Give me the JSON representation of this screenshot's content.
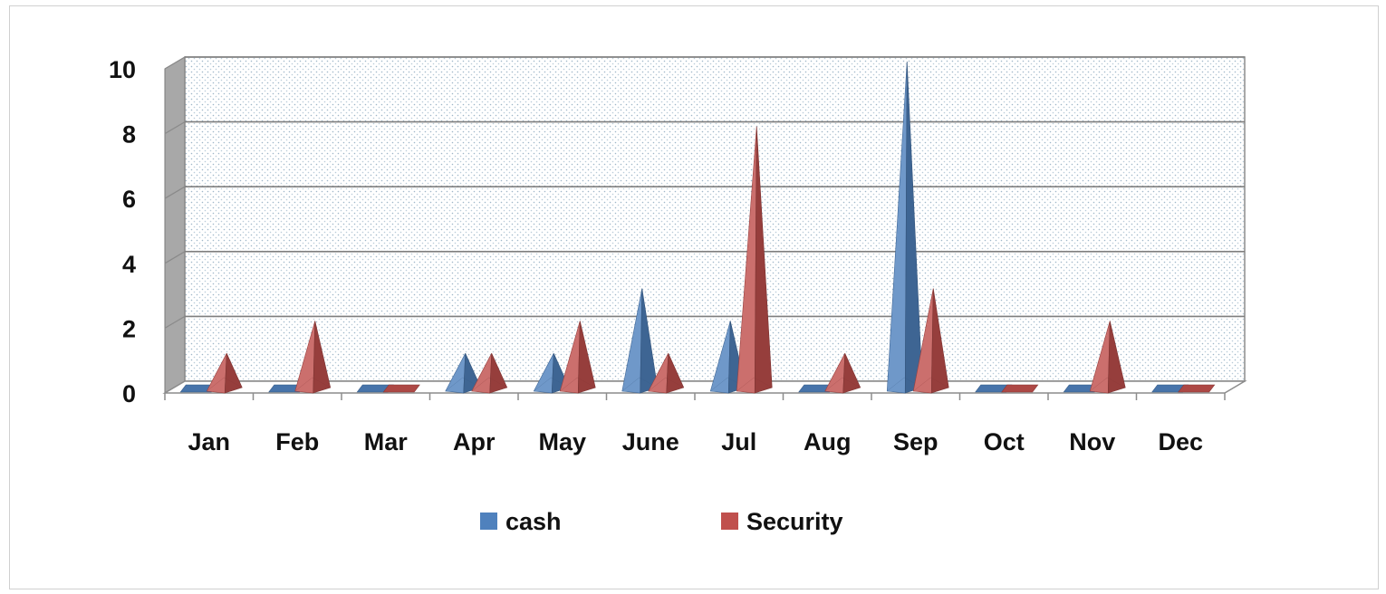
{
  "chart_data": {
    "type": "bar",
    "subtype": "3d-pyramid",
    "title": "",
    "xlabel": "",
    "ylabel": "",
    "categories": [
      "Jan",
      "Feb",
      "Mar",
      "Apr",
      "May",
      "June",
      "Jul",
      "Aug",
      "Sep",
      "Oct",
      "Nov",
      "Dec"
    ],
    "series": [
      {
        "name": "cash",
        "color": "#4F81BD",
        "values": [
          0,
          0,
          0,
          1,
          1,
          3,
          2,
          0,
          10,
          0,
          0,
          0
        ]
      },
      {
        "name": "Security",
        "color": "#C0504D",
        "values": [
          1,
          2,
          0,
          1,
          2,
          1,
          8,
          1,
          3,
          0,
          2,
          0
        ]
      }
    ],
    "ylim": [
      0,
      10
    ],
    "yticks": [
      "0",
      "2",
      "4",
      "6",
      "8",
      "10"
    ],
    "grid": true,
    "legend_position": "bottom"
  }
}
